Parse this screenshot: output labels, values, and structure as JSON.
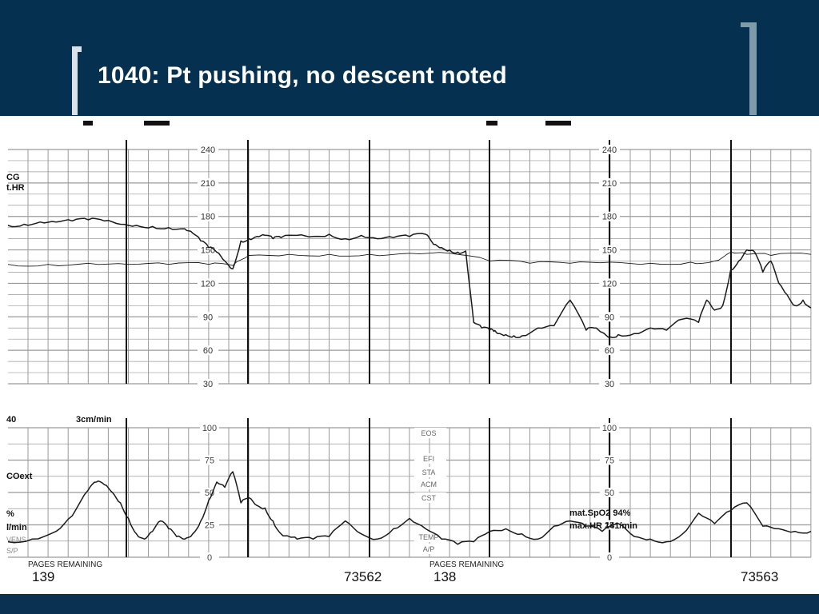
{
  "slide": {
    "title": "1040: Pt pushing, no descent noted"
  },
  "colors": {
    "header_bg": "#05304f",
    "footer_bg": "#0a3152",
    "title_text": "#ffffff",
    "trace": "#1a1a1a",
    "grid": "#9a9a9a"
  },
  "chart_data": [
    {
      "type": "line",
      "panel": "fetal heart rate",
      "left_labels": [
        "CG",
        "t.HR"
      ],
      "yticks": [
        240,
        210,
        180,
        150,
        120,
        90,
        60,
        30
      ],
      "ylim": [
        30,
        240
      ],
      "xlim": [
        0,
        100
      ],
      "series": [
        {
          "x": [
            0,
            2,
            4,
            6,
            8,
            10,
            12,
            14,
            16,
            18,
            20,
            22,
            23,
            24,
            25,
            26,
            27,
            28,
            29,
            30,
            31,
            32,
            33,
            34,
            36,
            38,
            40,
            42,
            44,
            46,
            48,
            50,
            52,
            53,
            54,
            55,
            56,
            57,
            58,
            59,
            60,
            60.5,
            61,
            62,
            63,
            64,
            66,
            68,
            70,
            72,
            73,
            74,
            75,
            76,
            78,
            80,
            82,
            84,
            86,
            87,
            88,
            89,
            90,
            91,
            92,
            93,
            94,
            95,
            96,
            97,
            98,
            99,
            100
          ],
          "values": [
            172,
            173,
            175,
            175,
            176,
            177,
            176,
            173,
            172,
            171,
            170,
            169,
            165,
            158,
            152,
            148,
            140,
            133,
            158,
            160,
            162,
            163,
            160,
            161,
            163,
            162,
            164,
            160,
            163,
            160,
            161,
            162,
            164,
            155,
            152,
            150,
            148,
            149,
            85,
            80,
            78,
            77,
            75,
            74,
            73,
            73,
            80,
            82,
            105,
            78,
            80,
            76,
            72,
            74,
            75,
            80,
            78,
            88,
            85,
            105,
            96,
            100,
            132,
            140,
            150,
            148,
            130,
            140,
            120,
            110,
            100,
            105,
            98
          ]
        },
        {
          "x": [
            0,
            5,
            10,
            15,
            20,
            25,
            28,
            30,
            35,
            40,
            45,
            50,
            55,
            60,
            65,
            70,
            75,
            80,
            85,
            88,
            90,
            92,
            95,
            100
          ],
          "values": [
            137,
            137,
            138,
            137,
            137,
            137,
            136,
            145,
            146,
            146,
            146,
            147,
            147,
            140,
            138,
            138,
            139,
            138,
            139,
            140,
            148,
            146,
            145,
            146
          ]
        }
      ]
    },
    {
      "type": "line",
      "panel": "uterine activity",
      "left_labels": [
        "40",
        "COext",
        "%",
        "l/min",
        "VENS",
        "S/P"
      ],
      "speed_label": "3cm/min",
      "yticks": [
        100,
        75,
        50,
        25,
        0
      ],
      "ylim": [
        0,
        100
      ],
      "xlim": [
        0,
        100
      ],
      "mid_labels": [
        "EOS",
        "EFI",
        "STA",
        "ACM",
        "CST",
        "TEMP",
        "A/P"
      ],
      "annotations": [
        "mat.SpO2  94%",
        "max.HR  141/min"
      ],
      "series": [
        {
          "x": [
            0,
            3,
            6,
            8,
            10,
            11,
            12,
            13,
            14,
            15,
            16,
            17,
            18,
            19,
            20,
            21,
            22,
            23,
            24,
            25,
            26,
            27,
            28,
            29,
            30,
            31,
            32,
            33,
            34,
            35,
            36,
            38,
            40,
            42,
            44,
            46,
            48,
            50,
            52,
            54,
            56,
            58,
            60,
            62,
            64,
            66,
            68,
            70,
            72,
            74,
            76,
            78,
            80,
            82,
            84,
            86,
            88,
            90,
            92,
            94,
            96,
            98,
            100
          ],
          "values": [
            12,
            14,
            20,
            32,
            52,
            58,
            56,
            50,
            42,
            30,
            18,
            14,
            20,
            28,
            22,
            16,
            14,
            18,
            28,
            44,
            58,
            54,
            66,
            42,
            46,
            40,
            38,
            28,
            18,
            16,
            14,
            14,
            16,
            28,
            18,
            14,
            22,
            30,
            22,
            14,
            10,
            12,
            20,
            22,
            18,
            14,
            24,
            28,
            24,
            20,
            26,
            16,
            14,
            12,
            18,
            34,
            26,
            36,
            42,
            24,
            22,
            20,
            20
          ]
        }
      ]
    }
  ],
  "page_info": [
    {
      "label": "PAGES REMAINING",
      "count": "139",
      "serial": "73562"
    },
    {
      "label": "PAGES REMAINING",
      "count": "138",
      "serial": "73563"
    }
  ]
}
